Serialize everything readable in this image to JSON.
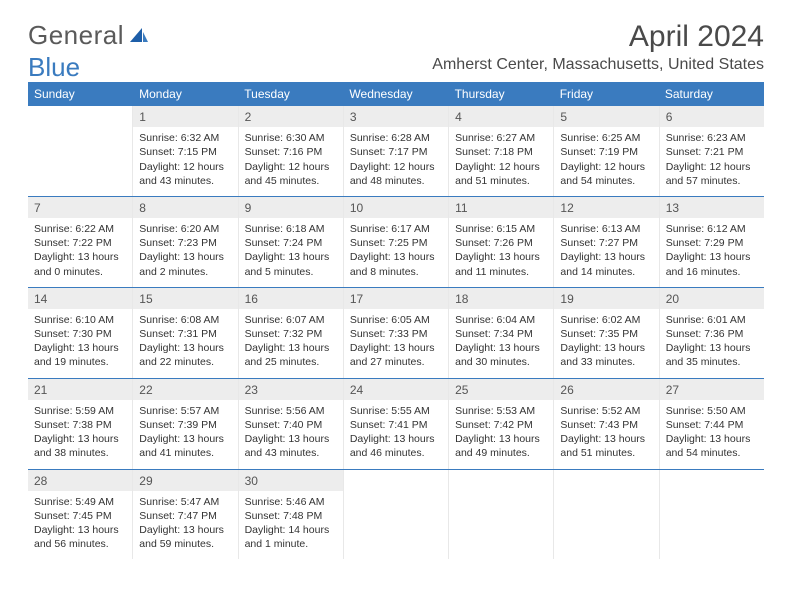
{
  "logo": {
    "general": "General",
    "blue": "Blue"
  },
  "title": "April 2024",
  "location": "Amherst Center, Massachusetts, United States",
  "colors": {
    "header_bg": "#3a7bbf",
    "header_text": "#ffffff",
    "row_border": "#3a7bbf",
    "daynum_bg": "#ededed",
    "text": "#333333"
  },
  "dow": [
    "Sunday",
    "Monday",
    "Tuesday",
    "Wednesday",
    "Thursday",
    "Friday",
    "Saturday"
  ],
  "weeks": [
    [
      null,
      {
        "n": "1",
        "sr": "Sunrise: 6:32 AM",
        "ss": "Sunset: 7:15 PM",
        "d1": "Daylight: 12 hours",
        "d2": "and 43 minutes."
      },
      {
        "n": "2",
        "sr": "Sunrise: 6:30 AM",
        "ss": "Sunset: 7:16 PM",
        "d1": "Daylight: 12 hours",
        "d2": "and 45 minutes."
      },
      {
        "n": "3",
        "sr": "Sunrise: 6:28 AM",
        "ss": "Sunset: 7:17 PM",
        "d1": "Daylight: 12 hours",
        "d2": "and 48 minutes."
      },
      {
        "n": "4",
        "sr": "Sunrise: 6:27 AM",
        "ss": "Sunset: 7:18 PM",
        "d1": "Daylight: 12 hours",
        "d2": "and 51 minutes."
      },
      {
        "n": "5",
        "sr": "Sunrise: 6:25 AM",
        "ss": "Sunset: 7:19 PM",
        "d1": "Daylight: 12 hours",
        "d2": "and 54 minutes."
      },
      {
        "n": "6",
        "sr": "Sunrise: 6:23 AM",
        "ss": "Sunset: 7:21 PM",
        "d1": "Daylight: 12 hours",
        "d2": "and 57 minutes."
      }
    ],
    [
      {
        "n": "7",
        "sr": "Sunrise: 6:22 AM",
        "ss": "Sunset: 7:22 PM",
        "d1": "Daylight: 13 hours",
        "d2": "and 0 minutes."
      },
      {
        "n": "8",
        "sr": "Sunrise: 6:20 AM",
        "ss": "Sunset: 7:23 PM",
        "d1": "Daylight: 13 hours",
        "d2": "and 2 minutes."
      },
      {
        "n": "9",
        "sr": "Sunrise: 6:18 AM",
        "ss": "Sunset: 7:24 PM",
        "d1": "Daylight: 13 hours",
        "d2": "and 5 minutes."
      },
      {
        "n": "10",
        "sr": "Sunrise: 6:17 AM",
        "ss": "Sunset: 7:25 PM",
        "d1": "Daylight: 13 hours",
        "d2": "and 8 minutes."
      },
      {
        "n": "11",
        "sr": "Sunrise: 6:15 AM",
        "ss": "Sunset: 7:26 PM",
        "d1": "Daylight: 13 hours",
        "d2": "and 11 minutes."
      },
      {
        "n": "12",
        "sr": "Sunrise: 6:13 AM",
        "ss": "Sunset: 7:27 PM",
        "d1": "Daylight: 13 hours",
        "d2": "and 14 minutes."
      },
      {
        "n": "13",
        "sr": "Sunrise: 6:12 AM",
        "ss": "Sunset: 7:29 PM",
        "d1": "Daylight: 13 hours",
        "d2": "and 16 minutes."
      }
    ],
    [
      {
        "n": "14",
        "sr": "Sunrise: 6:10 AM",
        "ss": "Sunset: 7:30 PM",
        "d1": "Daylight: 13 hours",
        "d2": "and 19 minutes."
      },
      {
        "n": "15",
        "sr": "Sunrise: 6:08 AM",
        "ss": "Sunset: 7:31 PM",
        "d1": "Daylight: 13 hours",
        "d2": "and 22 minutes."
      },
      {
        "n": "16",
        "sr": "Sunrise: 6:07 AM",
        "ss": "Sunset: 7:32 PM",
        "d1": "Daylight: 13 hours",
        "d2": "and 25 minutes."
      },
      {
        "n": "17",
        "sr": "Sunrise: 6:05 AM",
        "ss": "Sunset: 7:33 PM",
        "d1": "Daylight: 13 hours",
        "d2": "and 27 minutes."
      },
      {
        "n": "18",
        "sr": "Sunrise: 6:04 AM",
        "ss": "Sunset: 7:34 PM",
        "d1": "Daylight: 13 hours",
        "d2": "and 30 minutes."
      },
      {
        "n": "19",
        "sr": "Sunrise: 6:02 AM",
        "ss": "Sunset: 7:35 PM",
        "d1": "Daylight: 13 hours",
        "d2": "and 33 minutes."
      },
      {
        "n": "20",
        "sr": "Sunrise: 6:01 AM",
        "ss": "Sunset: 7:36 PM",
        "d1": "Daylight: 13 hours",
        "d2": "and 35 minutes."
      }
    ],
    [
      {
        "n": "21",
        "sr": "Sunrise: 5:59 AM",
        "ss": "Sunset: 7:38 PM",
        "d1": "Daylight: 13 hours",
        "d2": "and 38 minutes."
      },
      {
        "n": "22",
        "sr": "Sunrise: 5:57 AM",
        "ss": "Sunset: 7:39 PM",
        "d1": "Daylight: 13 hours",
        "d2": "and 41 minutes."
      },
      {
        "n": "23",
        "sr": "Sunrise: 5:56 AM",
        "ss": "Sunset: 7:40 PM",
        "d1": "Daylight: 13 hours",
        "d2": "and 43 minutes."
      },
      {
        "n": "24",
        "sr": "Sunrise: 5:55 AM",
        "ss": "Sunset: 7:41 PM",
        "d1": "Daylight: 13 hours",
        "d2": "and 46 minutes."
      },
      {
        "n": "25",
        "sr": "Sunrise: 5:53 AM",
        "ss": "Sunset: 7:42 PM",
        "d1": "Daylight: 13 hours",
        "d2": "and 49 minutes."
      },
      {
        "n": "26",
        "sr": "Sunrise: 5:52 AM",
        "ss": "Sunset: 7:43 PM",
        "d1": "Daylight: 13 hours",
        "d2": "and 51 minutes."
      },
      {
        "n": "27",
        "sr": "Sunrise: 5:50 AM",
        "ss": "Sunset: 7:44 PM",
        "d1": "Daylight: 13 hours",
        "d2": "and 54 minutes."
      }
    ],
    [
      {
        "n": "28",
        "sr": "Sunrise: 5:49 AM",
        "ss": "Sunset: 7:45 PM",
        "d1": "Daylight: 13 hours",
        "d2": "and 56 minutes."
      },
      {
        "n": "29",
        "sr": "Sunrise: 5:47 AM",
        "ss": "Sunset: 7:47 PM",
        "d1": "Daylight: 13 hours",
        "d2": "and 59 minutes."
      },
      {
        "n": "30",
        "sr": "Sunrise: 5:46 AM",
        "ss": "Sunset: 7:48 PM",
        "d1": "Daylight: 14 hours",
        "d2": "and 1 minute."
      },
      null,
      null,
      null,
      null
    ]
  ]
}
